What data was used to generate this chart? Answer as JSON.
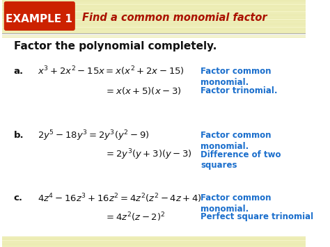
{
  "bg_color_header": "#f5f5c8",
  "bg_color_body": "#ffffff",
  "header_bg": "#cc2200",
  "header_text": "EXAMPLE 1",
  "header_subtext": "Find a common monomial factor",
  "header_subtext_color": "#aa1100",
  "header_stripe_color": "#e8e8aa",
  "title": "Factor the polynomial completely.",
  "title_color": "#111111",
  "blue_color": "#1a6ecc",
  "math_color": "#111111",
  "footer_color": "#e8e8aa",
  "rows": [
    {
      "label": "a.",
      "eq1": "$x^3 + 2x^2 - 15x = x(x^2 + 2x - 15)$",
      "eq2": "$= x(x + 5)(x - 3)$",
      "note1": "Factor common\nmonomial.",
      "note2": "Factor trinomial."
    },
    {
      "label": "b.",
      "eq1": "$2y^5 - 18y^3 = 2y^3(y^2 - 9)$",
      "eq2": "$= 2y^3(y + 3)(y - 3)$",
      "note1": "Factor common\nmonomial.",
      "note2": "Difference of two\nsquares"
    },
    {
      "label": "c.",
      "eq1": "$4z^4 - 16z^3 + 16z^2 = 4z^2(z^2 - 4z + 4)$",
      "eq2": "$= 4z^2(z - 2)^2$",
      "note1": "Factor common\nmonomial.",
      "note2": "Perfect square trinomial"
    }
  ]
}
